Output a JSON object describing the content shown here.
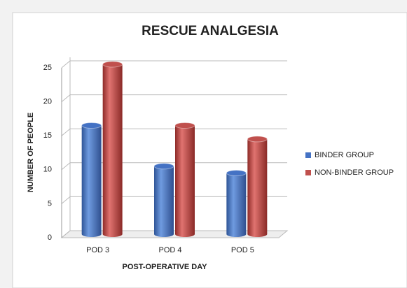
{
  "chart_data": {
    "type": "bar",
    "title": "RESCUE ANALGESIA",
    "categories": [
      "POD 3",
      "POD 4",
      "POD 5"
    ],
    "series": [
      {
        "name": "BINDER GROUP",
        "color": "#4472c4",
        "values": [
          16,
          10,
          9
        ]
      },
      {
        "name": "NON-BINDER GROUP",
        "color": "#c0504d",
        "values": [
          25,
          16,
          14
        ]
      }
    ],
    "x_label": "POST-OPERATIVE DAY",
    "y_label": "NUMBER OF PEOPLE",
    "ylim": [
      0,
      25
    ],
    "yticks": [
      0,
      5,
      10,
      15,
      20,
      25
    ],
    "grid": true,
    "legend": "right"
  }
}
